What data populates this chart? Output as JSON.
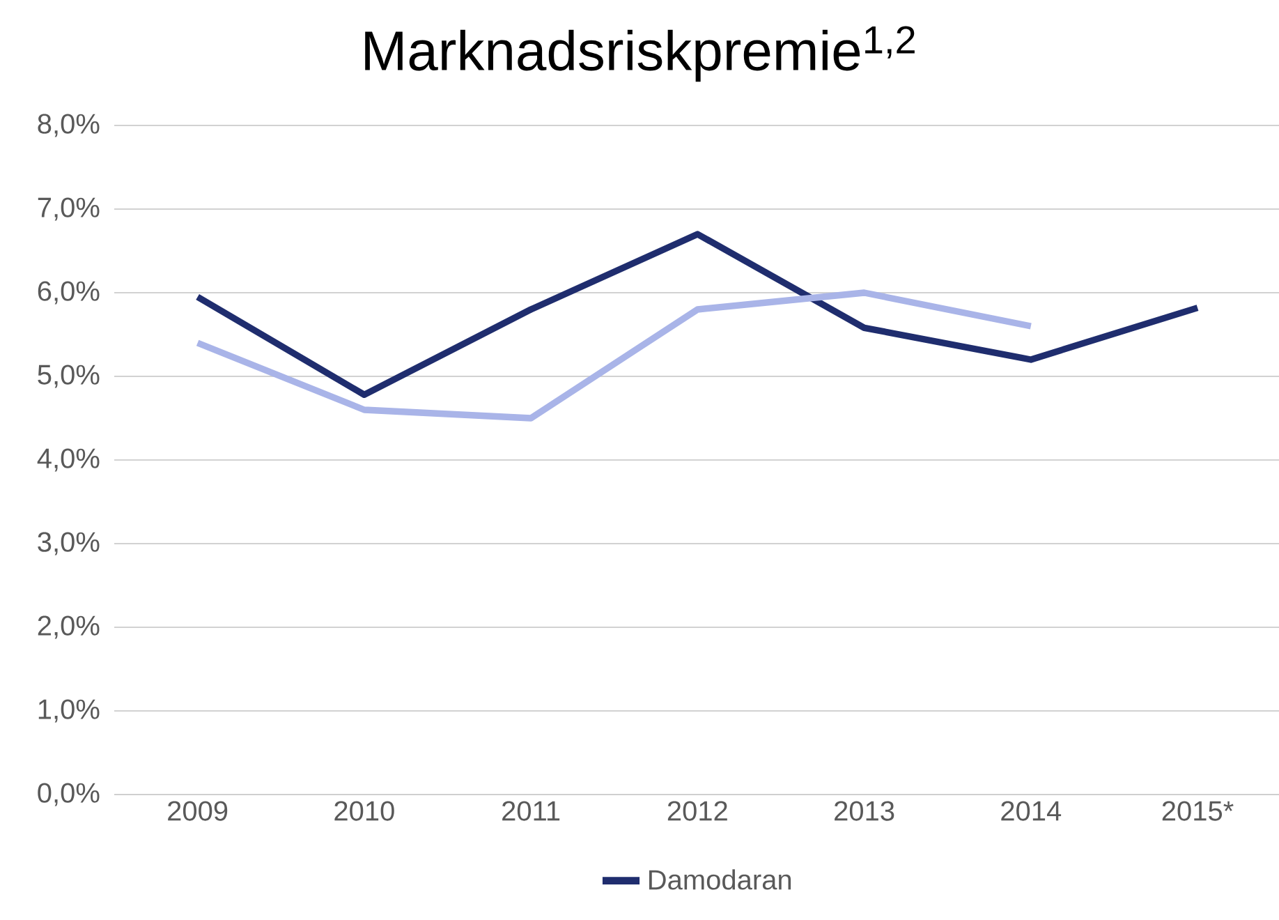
{
  "chart_data": {
    "type": "line",
    "title": "Marknadsriskpremie$^{1,2}$",
    "categories": [
      "2009",
      "2010",
      "2011",
      "2012",
      "2013",
      "2014",
      "2015*"
    ],
    "series": [
      {
        "name": "Damodaran",
        "color": "#1f2d6e",
        "values": [
          5.95,
          4.78,
          5.8,
          6.7,
          5.58,
          5.2,
          5.82
        ]
      },
      {
        "color": "#a9b4e8",
        "values": [
          5.4,
          4.6,
          4.5,
          5.8,
          6.0,
          5.6,
          null
        ]
      }
    ],
    "ylim": [
      0,
      8
    ],
    "yticks": [
      {
        "value": 0,
        "label": "0,0%"
      },
      {
        "value": 1,
        "label": "1,0%"
      },
      {
        "value": 2,
        "label": "2,0%"
      },
      {
        "value": 3,
        "label": "3,0%"
      },
      {
        "value": 4,
        "label": "4,0%"
      },
      {
        "value": 5,
        "label": "5,0%"
      },
      {
        "value": 6,
        "label": "6,0%"
      },
      {
        "value": 7,
        "label": "7,0%"
      },
      {
        "value": 8,
        "label": "8,0%"
      }
    ],
    "grid": "y",
    "legend": "bottom",
    "marker": "none",
    "line_style": "solid"
  }
}
